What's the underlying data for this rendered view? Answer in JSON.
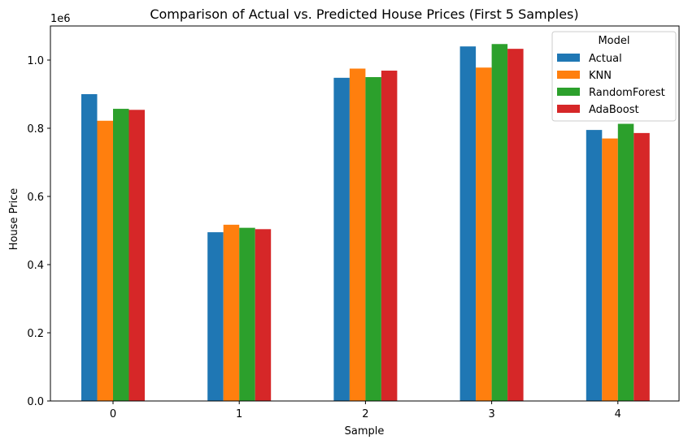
{
  "chart_data": {
    "type": "bar",
    "title": "Comparison of Actual vs. Predicted House Prices (First 5 Samples)",
    "xlabel": "Sample",
    "ylabel": "House Price",
    "y_offset_label": "1e6",
    "categories": [
      "0",
      "1",
      "2",
      "3",
      "4"
    ],
    "ylim": [
      0,
      1100000
    ],
    "yticks": [
      0,
      200000,
      400000,
      600000,
      800000,
      1000000
    ],
    "ytick_labels": [
      "0.0",
      "0.2",
      "0.4",
      "0.6",
      "0.8",
      "1.0"
    ],
    "grid": false,
    "legend": {
      "title": "Model",
      "placement": "top-right"
    },
    "series": [
      {
        "name": "Actual",
        "color": "#1f77b4",
        "values": [
          900000,
          495000,
          948000,
          1040000,
          795000
        ]
      },
      {
        "name": "KNN",
        "color": "#ff7f0e",
        "values": [
          822000,
          517000,
          975000,
          978000,
          770000
        ]
      },
      {
        "name": "RandomForest",
        "color": "#2ca02c",
        "values": [
          857000,
          508000,
          950000,
          1047000,
          813000
        ]
      },
      {
        "name": "AdaBoost",
        "color": "#d62728",
        "values": [
          854000,
          504000,
          969000,
          1033000,
          786000
        ]
      }
    ]
  }
}
